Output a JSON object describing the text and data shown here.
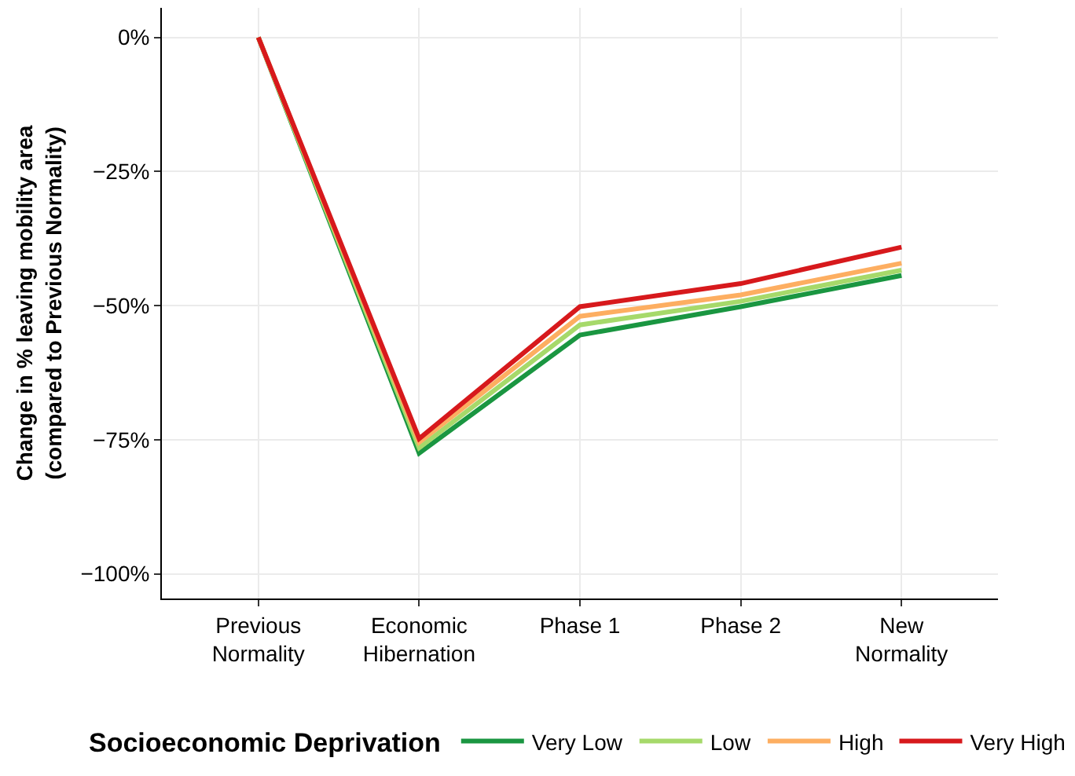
{
  "chart_data": {
    "type": "line",
    "ylabel": "Change in % leaving mobility area\n(compared to Previous Normality)",
    "legend_title": "Socioeconomic Deprivation",
    "categories": [
      "Previous\nNormality",
      "Economic\nHibernation",
      "Phase 1",
      "Phase 2",
      "New\nNormality"
    ],
    "series": [
      {
        "name": "Very Low",
        "color": "#1a9641",
        "values": [
          0,
          -77.5,
          -55.5,
          -50.2,
          -44.4
        ]
      },
      {
        "name": "Low",
        "color": "#a6d96a",
        "values": [
          0,
          -76.5,
          -53.6,
          -49.2,
          -43.4
        ]
      },
      {
        "name": "High",
        "color": "#fdae61",
        "values": [
          0,
          -75.5,
          -52,
          -48,
          -42.1
        ]
      },
      {
        "name": "Very High",
        "color": "#d7191c",
        "values": [
          0,
          -74.8,
          -50.2,
          -45.9,
          -39.1
        ]
      }
    ],
    "ylim": [
      -104.6,
      5.5
    ],
    "yticks": [
      {
        "value": -100,
        "label": "−100%"
      },
      {
        "value": -75,
        "label": "−75%"
      },
      {
        "value": -50,
        "label": "−50%"
      },
      {
        "value": -25,
        "label": "−25%"
      },
      {
        "value": 0,
        "label": "0%"
      }
    ],
    "grid": true,
    "legend": "bottom",
    "marker": "none",
    "line_style": "solid"
  }
}
